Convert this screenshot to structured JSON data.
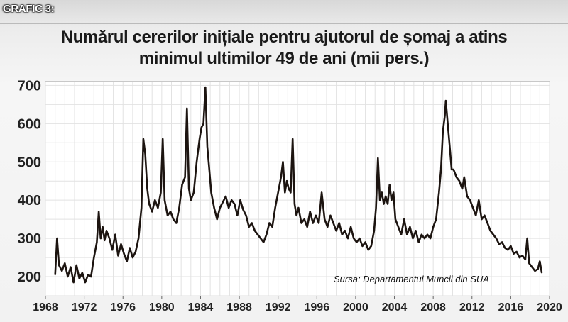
{
  "header": {
    "tag": "GRAFIC 3:"
  },
  "chart_data": {
    "type": "line",
    "title": "Numărul cererilor inițiale pentru ajutorul de șomaj a atins minimul ultimilor 49 de ani (mii pers.)",
    "title_lines": [
      "Numărul cererilor inițiale pentru ajutorul de șomaj a atins",
      "minimul ultimilor 49 de ani (mii pers.)"
    ],
    "source": "Sursa: Departamentul Muncii din SUA",
    "xlabel": "",
    "ylabel": "",
    "xlim": [
      1968,
      2020
    ],
    "ylim": [
      150,
      710
    ],
    "x_ticks": [
      1968,
      1972,
      1976,
      1980,
      1984,
      1988,
      1992,
      1996,
      2000,
      2004,
      2008,
      2012,
      2016,
      2020
    ],
    "y_ticks": [
      200,
      300,
      400,
      500,
      600,
      700
    ],
    "grid": true,
    "line_color": "#1c1410",
    "series": [
      {
        "name": "",
        "points": [
          [
            1969.0,
            205
          ],
          [
            1969.2,
            300
          ],
          [
            1969.4,
            230
          ],
          [
            1969.7,
            215
          ],
          [
            1970.0,
            235
          ],
          [
            1970.3,
            200
          ],
          [
            1970.6,
            225
          ],
          [
            1970.9,
            185
          ],
          [
            1971.2,
            230
          ],
          [
            1971.5,
            195
          ],
          [
            1971.8,
            210
          ],
          [
            1972.1,
            185
          ],
          [
            1972.4,
            205
          ],
          [
            1972.7,
            200
          ],
          [
            1973.0,
            250
          ],
          [
            1973.3,
            290
          ],
          [
            1973.5,
            370
          ],
          [
            1973.7,
            300
          ],
          [
            1973.9,
            330
          ],
          [
            1974.1,
            295
          ],
          [
            1974.3,
            320
          ],
          [
            1974.6,
            300
          ],
          [
            1974.9,
            270
          ],
          [
            1975.2,
            310
          ],
          [
            1975.5,
            255
          ],
          [
            1975.8,
            285
          ],
          [
            1976.1,
            260
          ],
          [
            1976.4,
            240
          ],
          [
            1976.7,
            275
          ],
          [
            1977.0,
            250
          ],
          [
            1977.3,
            265
          ],
          [
            1977.6,
            300
          ],
          [
            1977.9,
            380
          ],
          [
            1978.1,
            560
          ],
          [
            1978.3,
            520
          ],
          [
            1978.5,
            430
          ],
          [
            1978.7,
            390
          ],
          [
            1979.0,
            370
          ],
          [
            1979.3,
            400
          ],
          [
            1979.6,
            380
          ],
          [
            1979.9,
            420
          ],
          [
            1980.1,
            560
          ],
          [
            1980.3,
            400
          ],
          [
            1980.6,
            360
          ],
          [
            1980.9,
            370
          ],
          [
            1981.2,
            350
          ],
          [
            1981.5,
            340
          ],
          [
            1981.8,
            380
          ],
          [
            1982.1,
            440
          ],
          [
            1982.4,
            460
          ],
          [
            1982.6,
            640
          ],
          [
            1982.8,
            430
          ],
          [
            1983.0,
            400
          ],
          [
            1983.3,
            420
          ],
          [
            1983.6,
            500
          ],
          [
            1983.9,
            560
          ],
          [
            1984.1,
            590
          ],
          [
            1984.3,
            600
          ],
          [
            1984.5,
            695
          ],
          [
            1984.7,
            540
          ],
          [
            1984.9,
            480
          ],
          [
            1985.1,
            420
          ],
          [
            1985.4,
            380
          ],
          [
            1985.7,
            350
          ],
          [
            1986.0,
            380
          ],
          [
            1986.3,
            395
          ],
          [
            1986.6,
            410
          ],
          [
            1986.9,
            380
          ],
          [
            1987.2,
            400
          ],
          [
            1987.5,
            390
          ],
          [
            1987.8,
            360
          ],
          [
            1988.1,
            400
          ],
          [
            1988.4,
            375
          ],
          [
            1988.7,
            360
          ],
          [
            1989.0,
            330
          ],
          [
            1989.3,
            340
          ],
          [
            1989.6,
            320
          ],
          [
            1989.9,
            310
          ],
          [
            1990.2,
            300
          ],
          [
            1990.5,
            290
          ],
          [
            1990.8,
            310
          ],
          [
            1991.1,
            340
          ],
          [
            1991.4,
            330
          ],
          [
            1991.7,
            380
          ],
          [
            1992.0,
            420
          ],
          [
            1992.3,
            460
          ],
          [
            1992.5,
            500
          ],
          [
            1992.7,
            420
          ],
          [
            1992.9,
            450
          ],
          [
            1993.1,
            430
          ],
          [
            1993.3,
            420
          ],
          [
            1993.5,
            560
          ],
          [
            1993.7,
            390
          ],
          [
            1993.9,
            360
          ],
          [
            1994.1,
            380
          ],
          [
            1994.4,
            340
          ],
          [
            1994.7,
            350
          ],
          [
            1995.0,
            330
          ],
          [
            1995.3,
            370
          ],
          [
            1995.6,
            340
          ],
          [
            1995.9,
            360
          ],
          [
            1996.2,
            340
          ],
          [
            1996.5,
            420
          ],
          [
            1996.8,
            350
          ],
          [
            1997.1,
            330
          ],
          [
            1997.4,
            360
          ],
          [
            1997.7,
            340
          ],
          [
            1998.0,
            320
          ],
          [
            1998.3,
            340
          ],
          [
            1998.6,
            310
          ],
          [
            1998.9,
            320
          ],
          [
            1999.2,
            300
          ],
          [
            1999.5,
            330
          ],
          [
            1999.8,
            300
          ],
          [
            2000.1,
            290
          ],
          [
            2000.4,
            300
          ],
          [
            2000.7,
            280
          ],
          [
            2001.0,
            290
          ],
          [
            2001.3,
            270
          ],
          [
            2001.6,
            280
          ],
          [
            2001.9,
            320
          ],
          [
            2002.1,
            380
          ],
          [
            2002.3,
            510
          ],
          [
            2002.5,
            400
          ],
          [
            2002.7,
            420
          ],
          [
            2002.9,
            390
          ],
          [
            2003.1,
            410
          ],
          [
            2003.3,
            390
          ],
          [
            2003.5,
            440
          ],
          [
            2003.7,
            400
          ],
          [
            2003.9,
            420
          ],
          [
            2004.1,
            350
          ],
          [
            2004.4,
            330
          ],
          [
            2004.7,
            310
          ],
          [
            2005.0,
            350
          ],
          [
            2005.3,
            310
          ],
          [
            2005.6,
            330
          ],
          [
            2005.9,
            300
          ],
          [
            2006.2,
            320
          ],
          [
            2006.5,
            290
          ],
          [
            2006.8,
            310
          ],
          [
            2007.1,
            300
          ],
          [
            2007.4,
            310
          ],
          [
            2007.7,
            300
          ],
          [
            2008.0,
            330
          ],
          [
            2008.3,
            350
          ],
          [
            2008.6,
            420
          ],
          [
            2008.8,
            480
          ],
          [
            2009.0,
            580
          ],
          [
            2009.2,
            620
          ],
          [
            2009.3,
            660
          ],
          [
            2009.5,
            600
          ],
          [
            2009.7,
            540
          ],
          [
            2009.9,
            480
          ],
          [
            2010.1,
            480
          ],
          [
            2010.4,
            460
          ],
          [
            2010.7,
            450
          ],
          [
            2011.0,
            430
          ],
          [
            2011.2,
            460
          ],
          [
            2011.5,
            410
          ],
          [
            2011.8,
            400
          ],
          [
            2012.1,
            380
          ],
          [
            2012.4,
            360
          ],
          [
            2012.7,
            400
          ],
          [
            2013.0,
            350
          ],
          [
            2013.3,
            360
          ],
          [
            2013.6,
            340
          ],
          [
            2013.9,
            320
          ],
          [
            2014.2,
            310
          ],
          [
            2014.5,
            300
          ],
          [
            2014.8,
            285
          ],
          [
            2015.1,
            290
          ],
          [
            2015.4,
            275
          ],
          [
            2015.7,
            270
          ],
          [
            2016.0,
            280
          ],
          [
            2016.3,
            260
          ],
          [
            2016.6,
            265
          ],
          [
            2016.9,
            250
          ],
          [
            2017.2,
            255
          ],
          [
            2017.5,
            245
          ],
          [
            2017.7,
            300
          ],
          [
            2017.9,
            235
          ],
          [
            2018.2,
            225
          ],
          [
            2018.5,
            215
          ],
          [
            2018.8,
            220
          ],
          [
            2019.0,
            240
          ],
          [
            2019.2,
            210
          ]
        ]
      }
    ]
  }
}
